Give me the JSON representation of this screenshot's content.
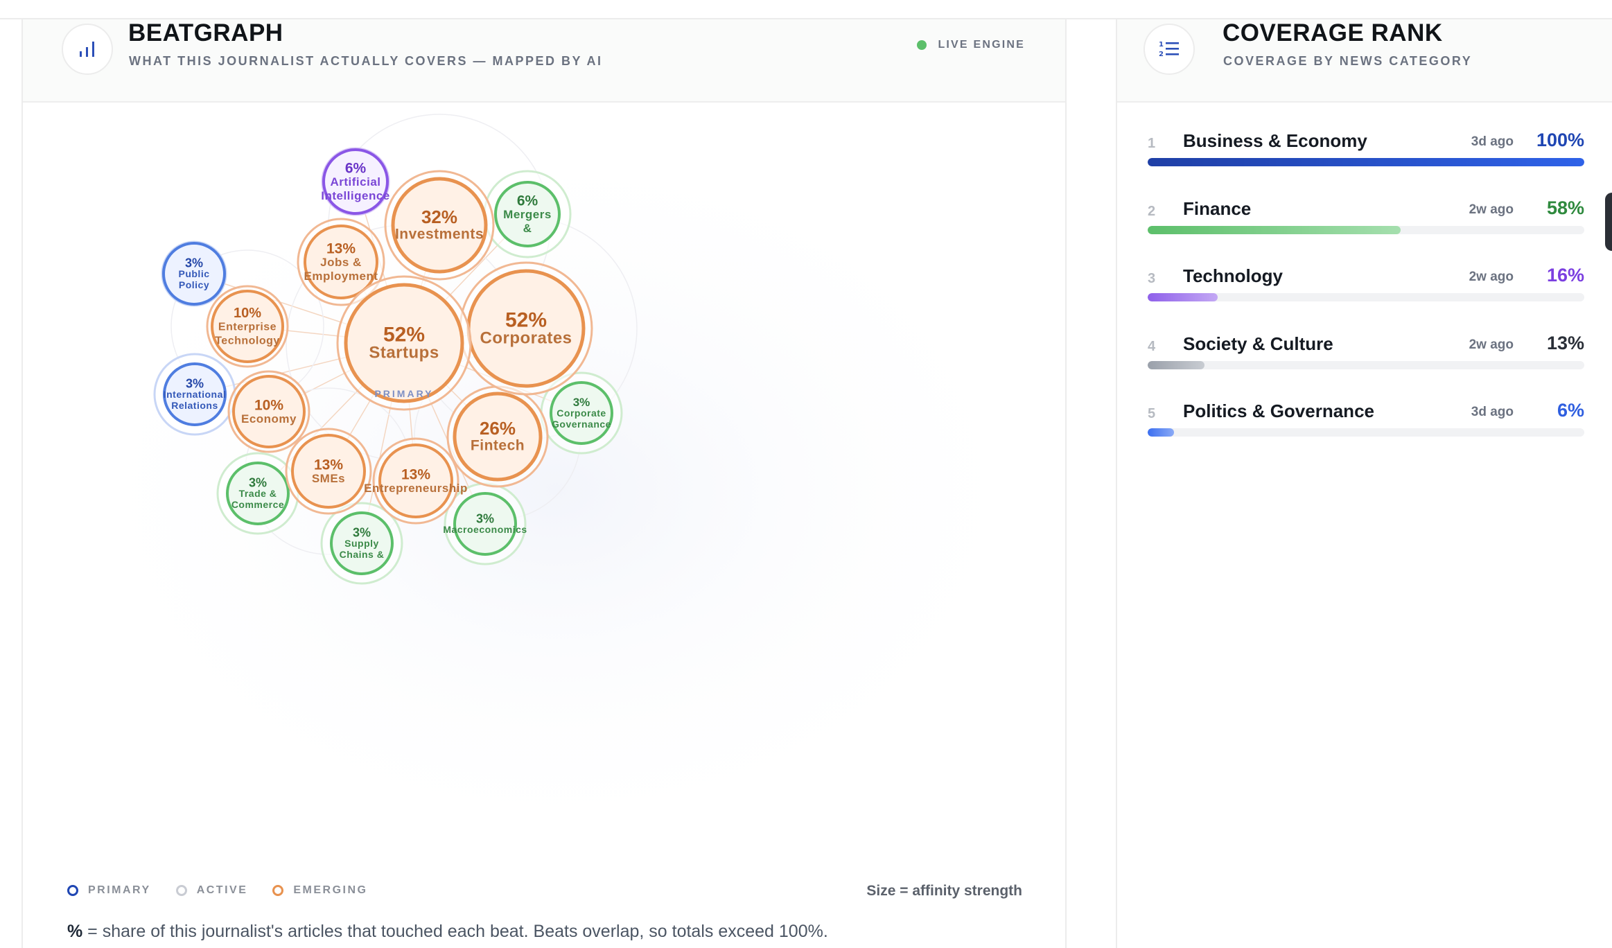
{
  "beatgraph": {
    "title": "BEATGRAPH",
    "subtitle": "WHAT THIS JOURNALIST ACTUALLY COVERS — MAPPED BY AI",
    "live_label": "LIVE ENGINE",
    "primary_tag": "PRIMARY",
    "legend": {
      "primary": "PRIMARY",
      "active": "ACTIVE",
      "emerging": "EMERGING",
      "size_note": "Size = affinity strength"
    },
    "footnote_pct": "%",
    "footnote_text": " = share of this journalist's articles that touched each beat. Beats overlap, so totals exceed 100%.",
    "beats": [
      {
        "pct": "52%",
        "lines": [
          "Startups"
        ],
        "type": "emerging",
        "primary": true
      },
      {
        "pct": "52%",
        "lines": [
          "Corporates"
        ],
        "type": "emerging"
      },
      {
        "pct": "32%",
        "lines": [
          "Investments"
        ],
        "type": "emerging"
      },
      {
        "pct": "26%",
        "lines": [
          "Fintech"
        ],
        "type": "emerging"
      },
      {
        "pct": "13%",
        "lines": [
          "Jobs &",
          "Employment"
        ],
        "type": "emerging"
      },
      {
        "pct": "13%",
        "lines": [
          "SMEs"
        ],
        "type": "emerging"
      },
      {
        "pct": "13%",
        "lines": [
          "Entrepreneurship"
        ],
        "type": "emerging"
      },
      {
        "pct": "10%",
        "lines": [
          "Enterprise",
          "Technology"
        ],
        "type": "emerging"
      },
      {
        "pct": "10%",
        "lines": [
          "Economy"
        ],
        "type": "emerging"
      },
      {
        "pct": "6%",
        "lines": [
          "Artificial",
          "Intelligence"
        ],
        "type": "purple"
      },
      {
        "pct": "6%",
        "lines": [
          "Mergers",
          "&"
        ],
        "type": "green"
      },
      {
        "pct": "3%",
        "lines": [
          "Public",
          "Policy"
        ],
        "type": "blue"
      },
      {
        "pct": "3%",
        "lines": [
          "International",
          "Relations"
        ],
        "type": "blue"
      },
      {
        "pct": "3%",
        "lines": [
          "Corporate",
          "Governance"
        ],
        "type": "green"
      },
      {
        "pct": "3%",
        "lines": [
          "Trade &",
          "Commerce"
        ],
        "type": "green"
      },
      {
        "pct": "3%",
        "lines": [
          "Supply",
          "Chains &"
        ],
        "type": "green"
      },
      {
        "pct": "3%",
        "lines": [
          "Macroeconomics"
        ],
        "type": "green"
      }
    ]
  },
  "coverage": {
    "title": "COVERAGE RANK",
    "subtitle": "COVERAGE BY NEWS CATEGORY",
    "items": [
      {
        "rank": "1",
        "name": "Business & Economy",
        "ago": "3d ago",
        "pct": "100%",
        "value": 100,
        "color": "#1f46b3"
      },
      {
        "rank": "2",
        "name": "Finance",
        "ago": "2w ago",
        "pct": "58%",
        "value": 58,
        "color": "#2f8a3e"
      },
      {
        "rank": "3",
        "name": "Technology",
        "ago": "2w ago",
        "pct": "16%",
        "value": 16,
        "color": "#7b3fe0"
      },
      {
        "rank": "4",
        "name": "Society & Culture",
        "ago": "2w ago",
        "pct": "13%",
        "value": 13,
        "color": "#2a2f38"
      },
      {
        "rank": "5",
        "name": "Politics & Governance",
        "ago": "3d ago",
        "pct": "6%",
        "value": 6,
        "color": "#2f5fe0"
      }
    ]
  },
  "colors": {
    "emerging": "#e8924f",
    "green": "#5cbf6a",
    "blue": "#4f7de0",
    "purple": "#8a56e6",
    "live": "#5cbf6a"
  }
}
